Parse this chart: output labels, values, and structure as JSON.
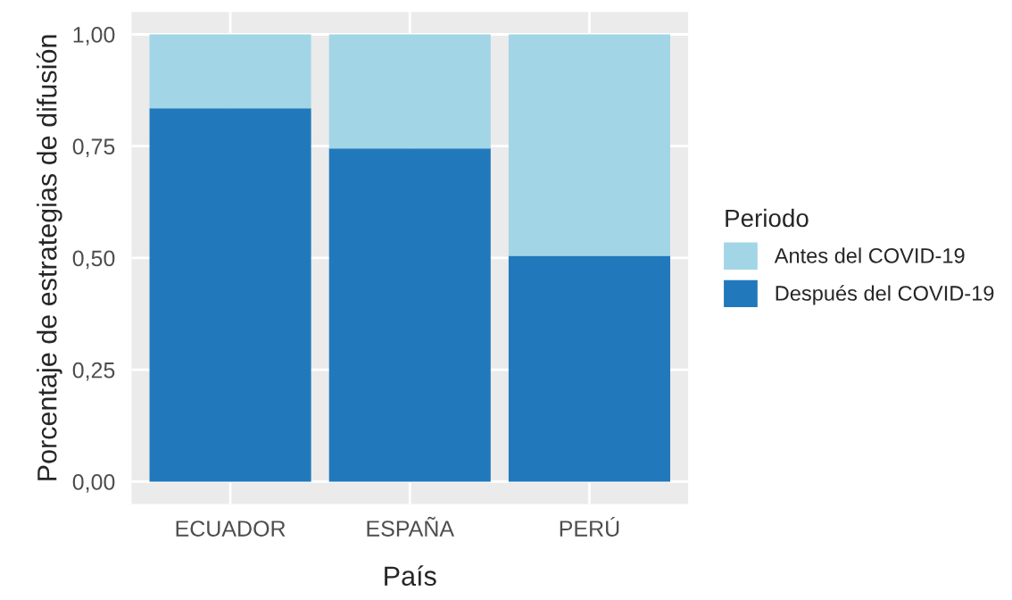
{
  "chart_data": {
    "type": "bar",
    "stacked": true,
    "xlabel": "País",
    "ylabel": "Porcentaje de estrategias de difusión",
    "legend_title": "Periodo",
    "categories": [
      "ECUADOR",
      "ESPAÑA",
      "PERÚ"
    ],
    "series": [
      {
        "name": "Después del COVID-19",
        "color": "#2179bb",
        "values": [
          0.835,
          0.745,
          0.505
        ]
      },
      {
        "name": "Antes del COVID-19",
        "color": "#a2d6e6",
        "values": [
          0.165,
          0.255,
          0.495
        ]
      }
    ],
    "ylim": [
      -0.05,
      1.05
    ],
    "yticks": [
      {
        "value": 0,
        "label": "0,00"
      },
      {
        "value": 0.25,
        "label": "0,25"
      },
      {
        "value": 0.5,
        "label": "0,50"
      },
      {
        "value": 0.75,
        "label": "0,75"
      },
      {
        "value": 1,
        "label": "1,00"
      }
    ],
    "grid": true,
    "legend": "right"
  }
}
